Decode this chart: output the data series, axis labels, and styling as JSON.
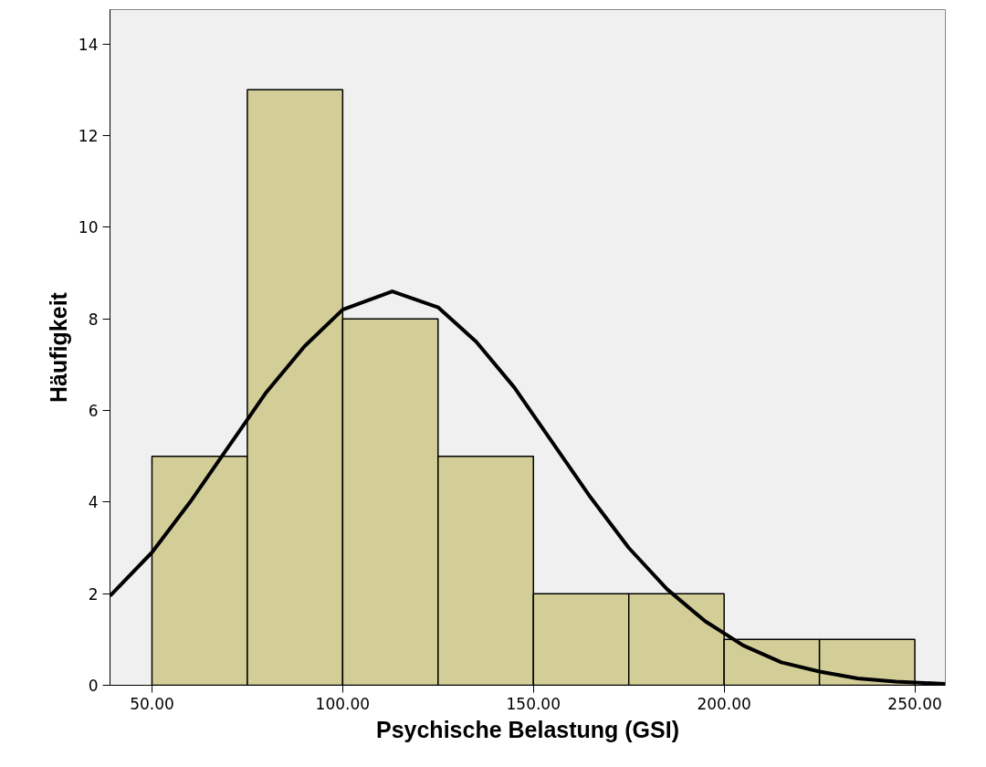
{
  "chart_data": {
    "type": "histogram",
    "xlabel": "Psychische Belastung (GSI)",
    "ylabel": "Häufigkeit",
    "bins": [
      50,
      75,
      100,
      125,
      150,
      175,
      200,
      225,
      250
    ],
    "values": [
      5,
      13,
      8,
      5,
      2,
      2,
      1,
      1
    ],
    "color": "#d3ce98",
    "series": [
      {
        "type": "line",
        "color": "#000000",
        "x": [
          39,
          50,
          60,
          70,
          80,
          90,
          100,
          113,
          125,
          135,
          145,
          155,
          165,
          175,
          185,
          195,
          205,
          215,
          225,
          235,
          245,
          258
        ],
        "values": [
          1.95,
          2.9,
          4.0,
          5.2,
          6.4,
          7.4,
          8.2,
          8.6,
          8.25,
          7.5,
          6.5,
          5.3,
          4.1,
          3.0,
          2.1,
          1.4,
          0.87,
          0.5,
          0.3,
          0.15,
          0.08,
          0.03
        ]
      }
    ],
    "xlim": [
      39,
      258
    ],
    "ylim": [
      0,
      14.75
    ],
    "xticks": [
      {
        "value": 50,
        "label": "50.00"
      },
      {
        "value": 100,
        "label": "100.00"
      },
      {
        "value": 150,
        "label": "150.00"
      },
      {
        "value": 200,
        "label": "200.00"
      },
      {
        "value": 250,
        "label": "250.00"
      }
    ],
    "yticks": [
      0,
      2,
      4,
      6,
      8,
      10,
      12,
      14
    ],
    "grid": false
  }
}
